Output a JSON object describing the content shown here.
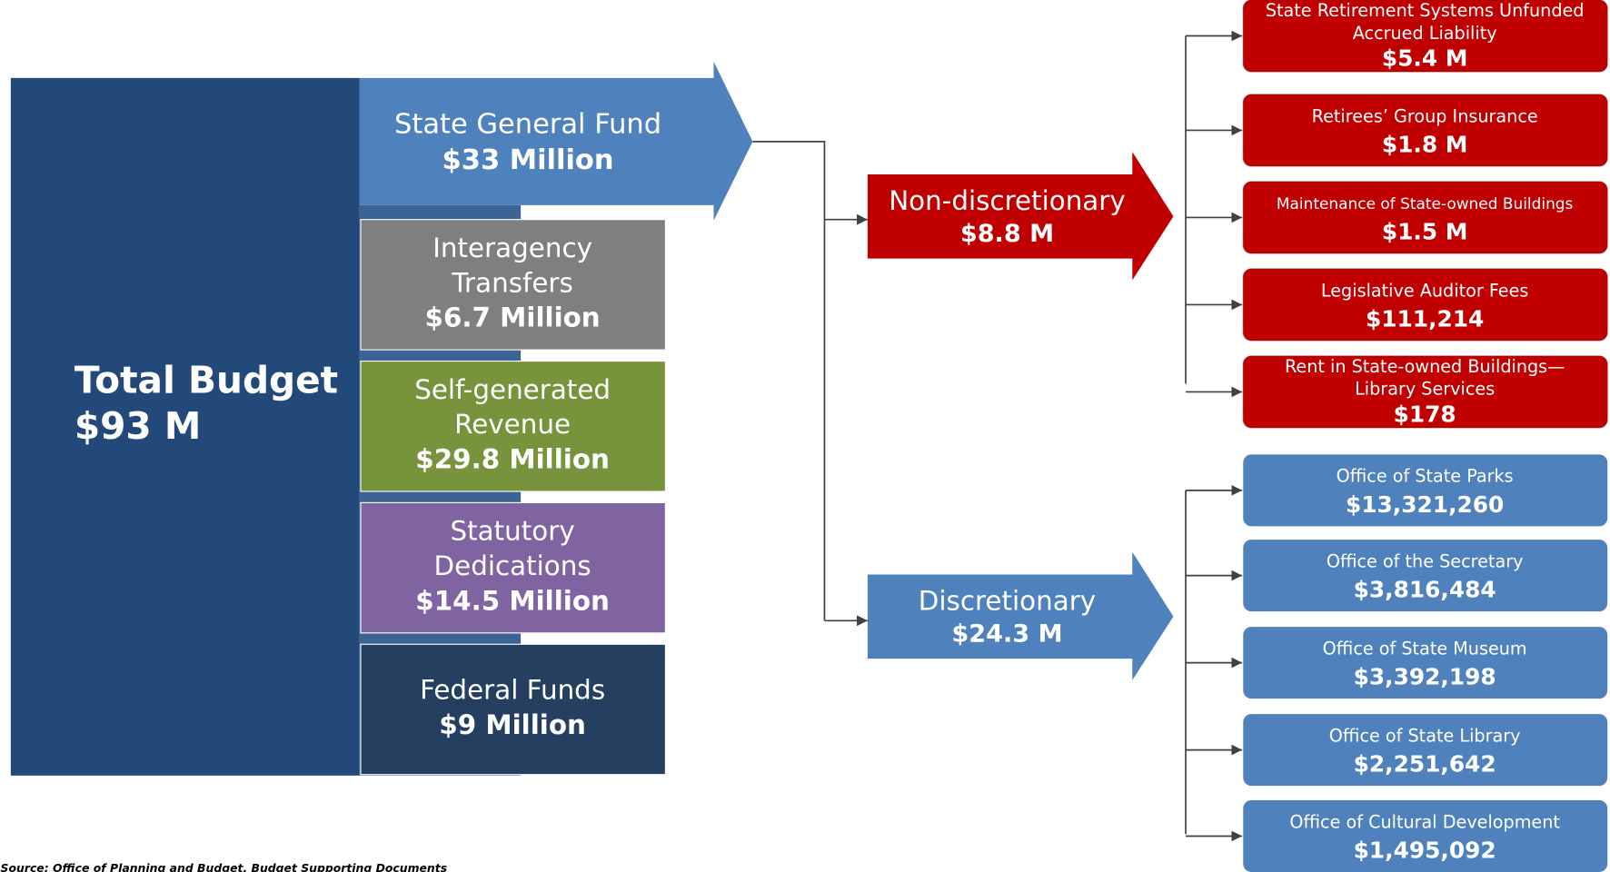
{
  "total": {
    "label": "Total Budget",
    "value": "$93 M"
  },
  "sources": [
    {
      "lines": [
        "State General Fund"
      ],
      "value": "$33 Million",
      "color": "#4f81bd"
    },
    {
      "lines": [
        "Interagency",
        "Transfers"
      ],
      "value": "$6.7 Million",
      "color": "#7f7f7f"
    },
    {
      "lines": [
        "Self-generated",
        "Revenue"
      ],
      "value": "$29.8 Million",
      "color": "#77933c"
    },
    {
      "lines": [
        "Statutory",
        "Dedications"
      ],
      "value": "$14.5 Million",
      "color": "#8064a2"
    },
    {
      "lines": [
        "Federal Funds"
      ],
      "value": "$9 Million",
      "color": "#243f60"
    }
  ],
  "non_discretionary": {
    "label": "Non-discretionary",
    "value": "$8.8 M",
    "color": "#c00000",
    "items": [
      {
        "lines": [
          "State Retirement Systems Unfunded",
          "Accrued Liability"
        ],
        "value": "$5.4 M"
      },
      {
        "lines": [
          "Retirees’ Group Insurance"
        ],
        "value": "$1.8 M"
      },
      {
        "lines": [
          "Maintenance of State-owned Buildings"
        ],
        "value": "$1.5 M"
      },
      {
        "lines": [
          "Legislative Auditor Fees"
        ],
        "value": "$111,214"
      },
      {
        "lines": [
          "Rent in State-owned Buildings—",
          "Library Services"
        ],
        "value": "$178"
      }
    ]
  },
  "discretionary": {
    "label": "Discretionary",
    "value": "$24.3 M",
    "color": "#4f81bd",
    "items": [
      {
        "lines": [
          "Office of State Parks"
        ],
        "value": "$13,321,260"
      },
      {
        "lines": [
          "Office of the Secretary"
        ],
        "value": "$3,816,484"
      },
      {
        "lines": [
          "Office of State Museum"
        ],
        "value": "$3,392,198"
      },
      {
        "lines": [
          "Office of State Library"
        ],
        "value": "$2,251,642"
      },
      {
        "lines": [
          "Office of Cultural Development"
        ],
        "value": "$1,495,092"
      }
    ]
  },
  "source_note": "Source: Office of Planning and Budget, Budget Supporting Documents"
}
